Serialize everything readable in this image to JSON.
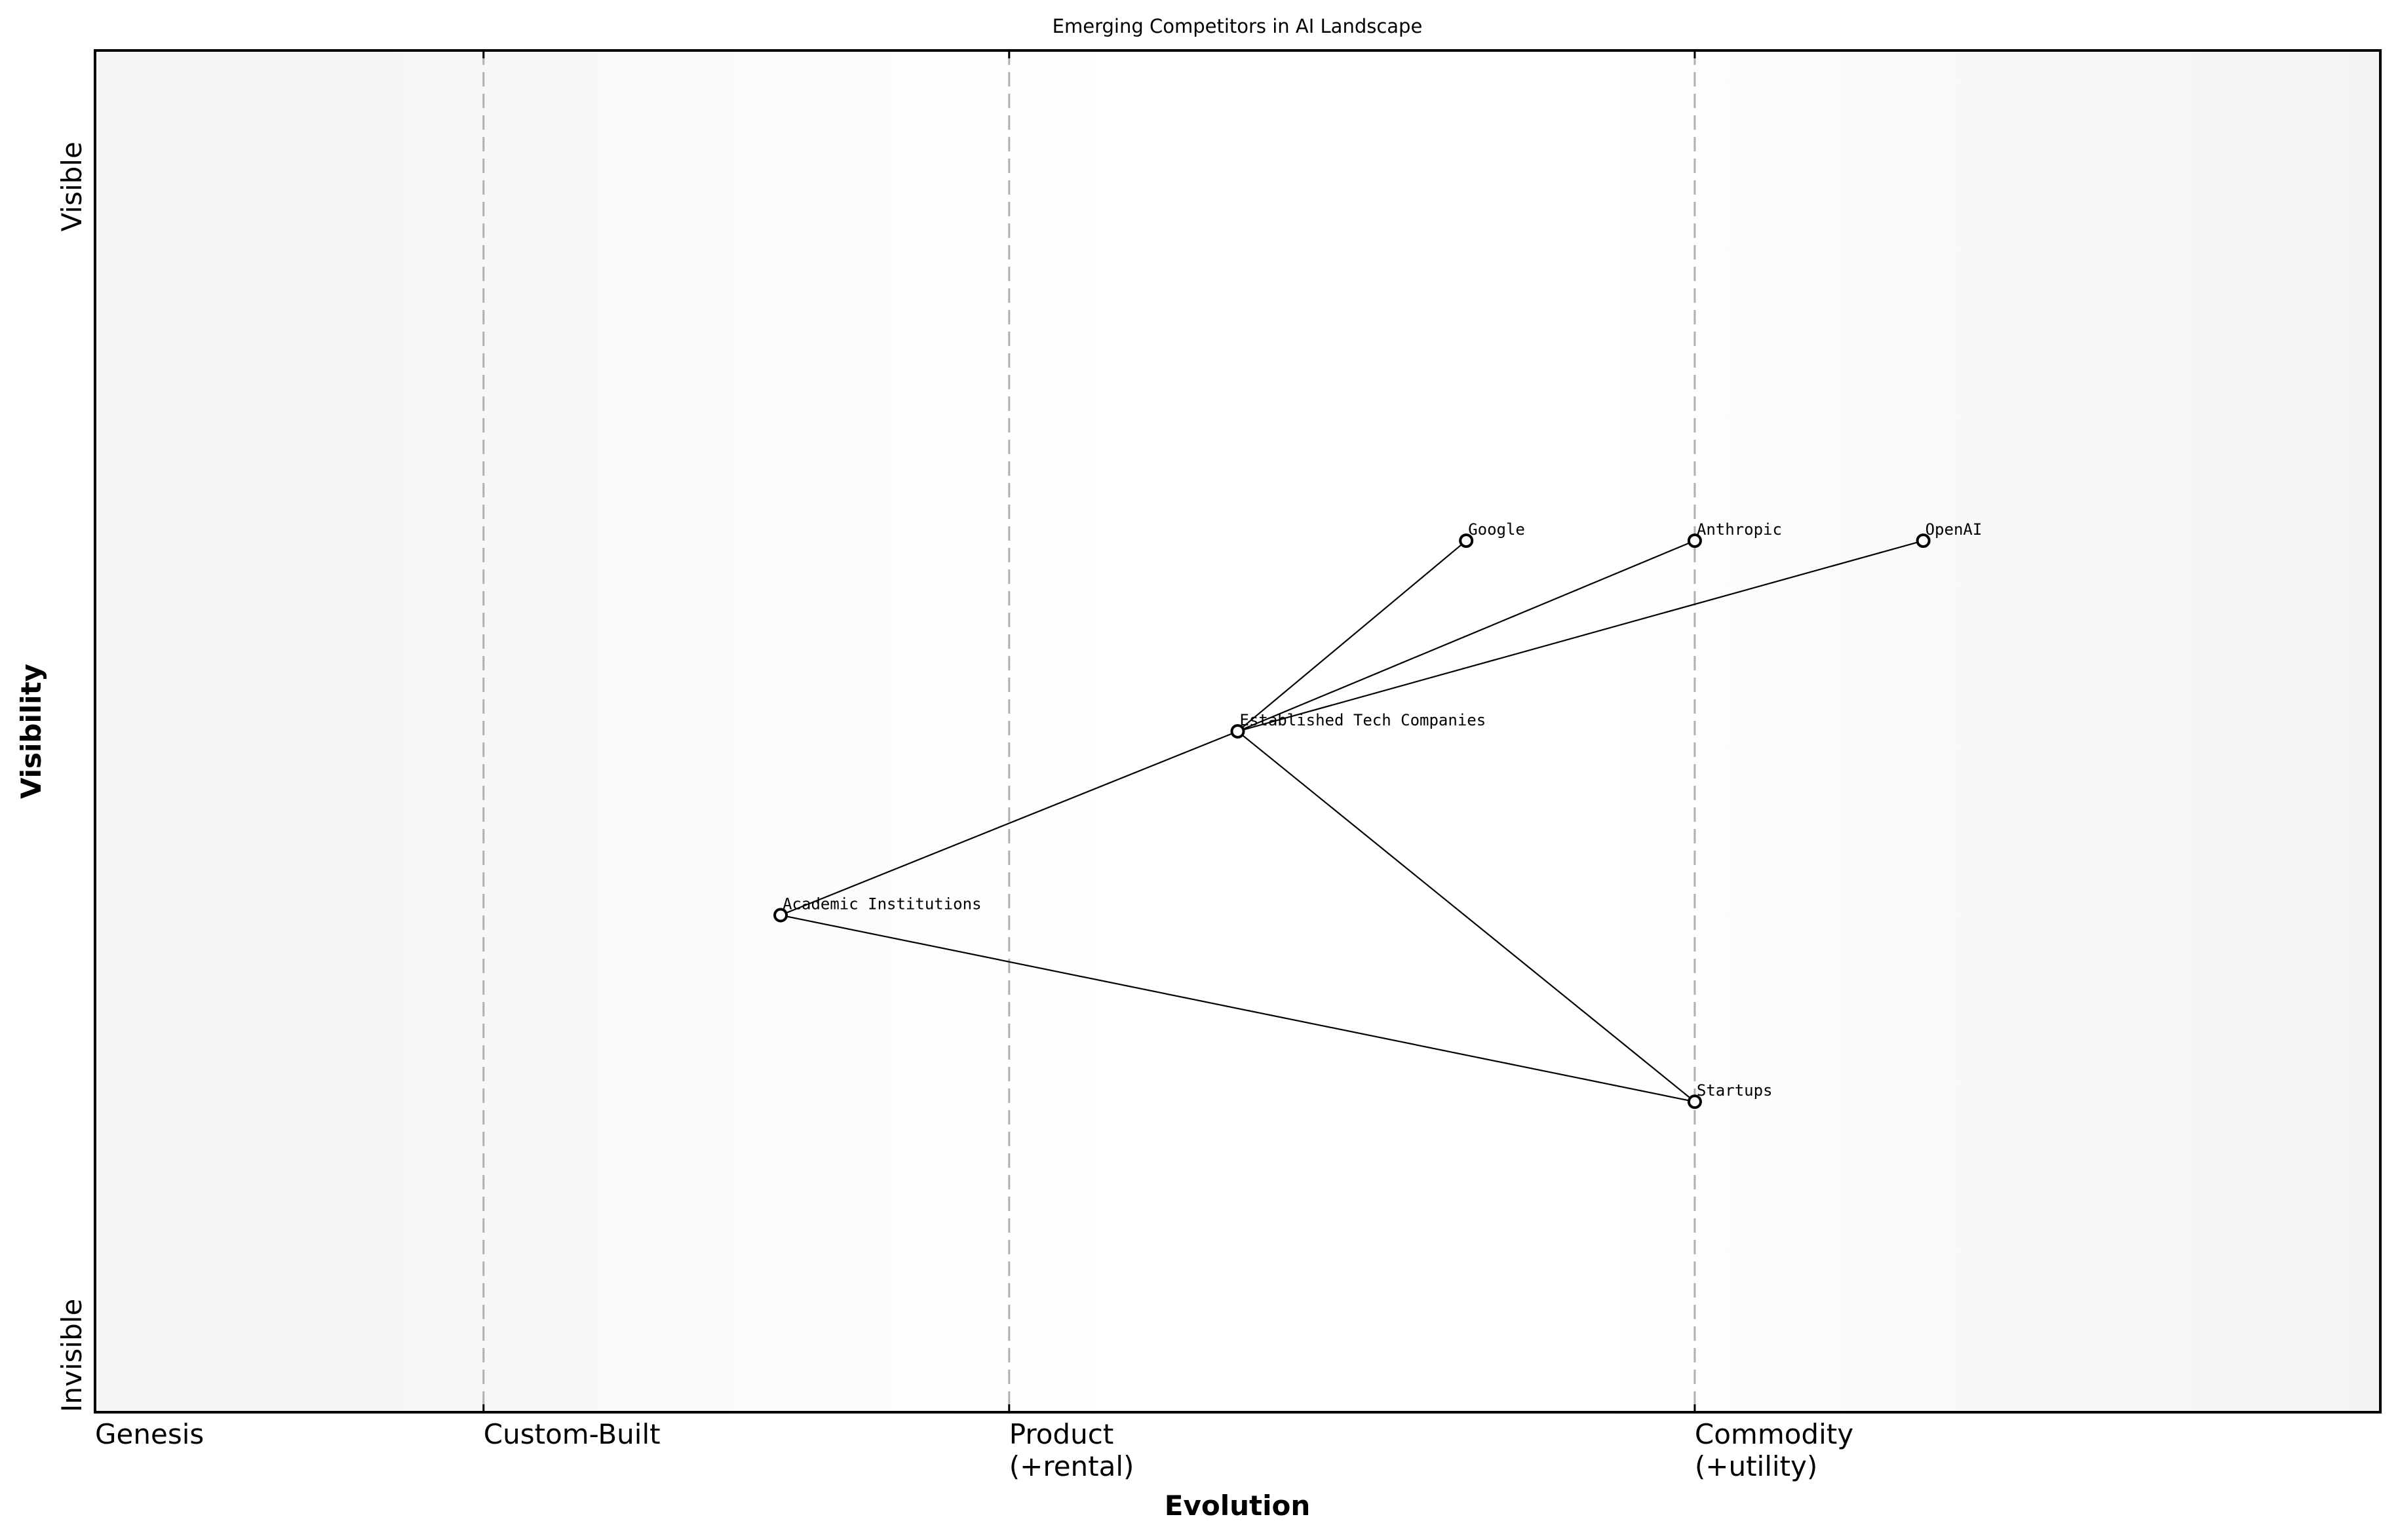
{
  "chart_data": {
    "type": "scatter",
    "subtype": "wardley-map",
    "title": "Emerging Competitors in AI Landscape",
    "xlabel": "Evolution",
    "ylabel": "Visibility",
    "xlim": [
      0,
      1
    ],
    "ylim": [
      0,
      1
    ],
    "grid": false,
    "legend": null,
    "x_stage_ticks": [
      {
        "label": "Genesis",
        "sublabel": "",
        "x": 0.0
      },
      {
        "label": "Custom-Built",
        "sublabel": "",
        "x": 0.17
      },
      {
        "label": "Product",
        "sublabel": "(+rental)",
        "x": 0.4
      },
      {
        "label": "Commodity",
        "sublabel": "(+utility)",
        "x": 0.7
      }
    ],
    "y_ticks": [
      {
        "label": "Invisible",
        "y": 0.0
      },
      {
        "label": "Visible",
        "y": 0.9
      }
    ],
    "stage_dividers_x": [
      0.17,
      0.4,
      0.7
    ],
    "nodes": [
      {
        "id": "google",
        "label": "Google",
        "x": 0.6,
        "y": 0.64
      },
      {
        "id": "anthropic",
        "label": "Anthropic",
        "x": 0.7,
        "y": 0.64
      },
      {
        "id": "openai",
        "label": "OpenAI",
        "x": 0.8,
        "y": 0.64
      },
      {
        "id": "etc",
        "label": "Established Tech Companies",
        "x": 0.5,
        "y": 0.5
      },
      {
        "id": "academic",
        "label": "Academic Institutions",
        "x": 0.3,
        "y": 0.365
      },
      {
        "id": "startups",
        "label": "Startups",
        "x": 0.7,
        "y": 0.228
      }
    ],
    "edges": [
      {
        "from": "etc",
        "to": "google"
      },
      {
        "from": "etc",
        "to": "anthropic"
      },
      {
        "from": "etc",
        "to": "openai"
      },
      {
        "from": "academic",
        "to": "etc"
      },
      {
        "from": "etc",
        "to": "startups"
      },
      {
        "from": "academic",
        "to": "startups"
      }
    ]
  },
  "colors": {
    "background_edge": "#f4f4f4",
    "background_center": "#ffffff",
    "divider": "#b0b0b0",
    "frame": "#000000",
    "node_fill": "#ffffff",
    "node_stroke": "#000000",
    "edge": "#000000"
  }
}
